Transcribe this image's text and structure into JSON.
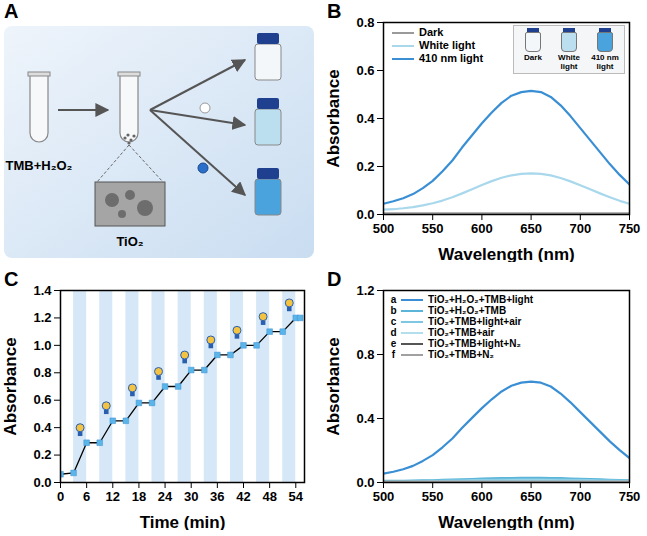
{
  "diagram": {
    "panel": "A",
    "reagent": "TMB+H₂O₂",
    "catalyst": "TiO₂"
  },
  "chart_data": [
    {
      "type": "line",
      "panel": "B",
      "x_label": "Wavelength (nm)",
      "y_label": "Absorbance",
      "x": [
        500,
        510,
        520,
        530,
        540,
        550,
        560,
        570,
        580,
        590,
        600,
        610,
        620,
        630,
        640,
        650,
        660,
        670,
        680,
        690,
        700,
        710,
        720,
        730,
        740,
        750
      ],
      "series": [
        {
          "name": "Dark",
          "color": "#9a9a9a",
          "values": [
            0.005,
            0.005,
            0.005,
            0.005,
            0.005,
            0.005,
            0.005,
            0.005,
            0.005,
            0.005,
            0.005,
            0.005,
            0.005,
            0.005,
            0.005,
            0.005,
            0.005,
            0.005,
            0.005,
            0.005,
            0.005,
            0.005,
            0.005,
            0.005,
            0.005,
            0.005
          ]
        },
        {
          "name": "White light",
          "color": "#a9d8ec",
          "values": [
            0.02,
            0.022,
            0.026,
            0.031,
            0.038,
            0.047,
            0.058,
            0.072,
            0.088,
            0.105,
            0.123,
            0.139,
            0.153,
            0.163,
            0.169,
            0.171,
            0.169,
            0.163,
            0.152,
            0.138,
            0.122,
            0.105,
            0.088,
            0.072,
            0.057,
            0.045
          ]
        },
        {
          "name": "410 nm light",
          "color": "#3a8fd4",
          "values": [
            0.045,
            0.055,
            0.068,
            0.085,
            0.11,
            0.14,
            0.18,
            0.225,
            0.28,
            0.33,
            0.38,
            0.425,
            0.465,
            0.495,
            0.51,
            0.515,
            0.51,
            0.49,
            0.455,
            0.41,
            0.36,
            0.31,
            0.26,
            0.21,
            0.165,
            0.125
          ]
        }
      ],
      "xlim": [
        500,
        750
      ],
      "xticks": [
        500,
        550,
        600,
        650,
        700,
        750
      ],
      "ylim": [
        0,
        0.8
      ],
      "yticks": [
        {
          "value": 0,
          "label": "0.0"
        },
        {
          "value": 0.2,
          "label": "0.2"
        },
        {
          "value": 0.4,
          "label": "0.4"
        },
        {
          "value": 0.6,
          "label": "0.6"
        },
        {
          "value": 0.8,
          "label": "0.8"
        }
      ],
      "legend": "top-left",
      "inset_labels": [
        "Dark",
        "White light",
        "410 nm light"
      ]
    },
    {
      "type": "line",
      "panel": "C",
      "x_label": "Time (min)",
      "y_label": "Absorbance",
      "x": [
        0,
        3,
        6,
        9,
        12,
        15,
        18,
        21,
        24,
        27,
        30,
        33,
        36,
        39,
        42,
        45,
        48,
        51,
        54,
        55
      ],
      "series": [
        {
          "color": "#000000",
          "marker": "square",
          "values": [
            0.06,
            0.07,
            0.29,
            0.29,
            0.45,
            0.45,
            0.58,
            0.58,
            0.7,
            0.7,
            0.82,
            0.82,
            0.93,
            0.93,
            1.0,
            1.0,
            1.1,
            1.1,
            1.2,
            1.2
          ]
        }
      ],
      "light_on": [
        [
          3,
          6
        ],
        [
          9,
          12
        ],
        [
          15,
          18
        ],
        [
          21,
          24
        ],
        [
          27,
          30
        ],
        [
          33,
          36
        ],
        [
          39,
          42
        ],
        [
          45,
          48
        ],
        [
          51,
          54
        ]
      ],
      "xlim": [
        0,
        56
      ],
      "xticks": [
        0,
        6,
        12,
        18,
        24,
        30,
        36,
        42,
        48,
        54
      ],
      "ylim": [
        0,
        1.4
      ],
      "yticks": [
        {
          "value": 0,
          "label": "0.0"
        },
        {
          "value": 0.2,
          "label": "0.2"
        },
        {
          "value": 0.4,
          "label": "0.4"
        },
        {
          "value": 0.6,
          "label": "0.6"
        },
        {
          "value": 0.8,
          "label": "0.8"
        },
        {
          "value": 1,
          "label": "1.0"
        },
        {
          "value": 1.2,
          "label": "1.2"
        },
        {
          "value": 1.4,
          "label": "1.4"
        }
      ]
    },
    {
      "type": "line",
      "panel": "D",
      "x_label": "Wavelength (nm)",
      "y_label": "Absorbance",
      "x": [
        500,
        510,
        520,
        530,
        540,
        550,
        560,
        570,
        580,
        590,
        600,
        610,
        620,
        630,
        640,
        650,
        660,
        670,
        680,
        690,
        700,
        710,
        720,
        730,
        740,
        750
      ],
      "series": [
        {
          "tag": "a",
          "name": "TiO₂+H₂O₂+TMB+light",
          "color": "#3a8fd4",
          "values": [
            0.055,
            0.067,
            0.083,
            0.104,
            0.135,
            0.171,
            0.22,
            0.275,
            0.342,
            0.404,
            0.465,
            0.52,
            0.569,
            0.605,
            0.624,
            0.63,
            0.624,
            0.6,
            0.556,
            0.501,
            0.44,
            0.379,
            0.318,
            0.257,
            0.202,
            0.153
          ]
        },
        {
          "tag": "b",
          "name": "TiO₂+H₂O₂+TMB",
          "color": "#5bb5d8",
          "values": [
            0.01,
            0.01,
            0.011,
            0.012,
            0.013,
            0.014,
            0.016,
            0.018,
            0.02,
            0.022,
            0.024,
            0.026,
            0.027,
            0.028,
            0.029,
            0.029,
            0.029,
            0.028,
            0.027,
            0.025,
            0.023,
            0.021,
            0.019,
            0.017,
            0.015,
            0.014
          ]
        },
        {
          "tag": "c",
          "name": "TiO₂+TMB+light+air",
          "color": "#7ec8e3",
          "values": [
            0.008,
            0.008,
            0.009,
            0.009,
            0.01,
            0.011,
            0.012,
            0.013,
            0.014,
            0.015,
            0.016,
            0.017,
            0.018,
            0.018,
            0.019,
            0.019,
            0.019,
            0.018,
            0.018,
            0.017,
            0.016,
            0.015,
            0.014,
            0.013,
            0.012,
            0.011
          ]
        },
        {
          "tag": "d",
          "name": "TiO₂+TMB+air",
          "color": "#b3deee",
          "values": [
            0.006,
            0.006,
            0.006,
            0.007,
            0.007,
            0.008,
            0.008,
            0.009,
            0.009,
            0.01,
            0.01,
            0.011,
            0.011,
            0.012,
            0.012,
            0.012,
            0.012,
            0.012,
            0.011,
            0.011,
            0.01,
            0.01,
            0.009,
            0.009,
            0.008,
            0.008
          ]
        },
        {
          "tag": "e",
          "name": "TiO₂+TMB+light+N₂",
          "color": "#555555",
          "values": [
            0.004,
            0.004,
            0.004,
            0.004,
            0.004,
            0.004,
            0.004,
            0.004,
            0.004,
            0.004,
            0.004,
            0.004,
            0.004,
            0.004,
            0.004,
            0.004,
            0.004,
            0.004,
            0.004,
            0.004,
            0.004,
            0.004,
            0.004,
            0.004,
            0.004,
            0.004
          ]
        },
        {
          "tag": "f",
          "name": "TiO₂+TMB+N₂",
          "color": "#a0a0a0",
          "values": [
            0.002,
            0.002,
            0.002,
            0.002,
            0.002,
            0.002,
            0.002,
            0.002,
            0.002,
            0.002,
            0.002,
            0.002,
            0.002,
            0.002,
            0.002,
            0.002,
            0.002,
            0.002,
            0.002,
            0.002,
            0.002,
            0.002,
            0.002,
            0.002,
            0.002,
            0.002
          ]
        }
      ],
      "xlim": [
        500,
        750
      ],
      "xticks": [
        500,
        550,
        600,
        650,
        700,
        750
      ],
      "ylim": [
        0,
        1.2
      ],
      "yticks": [
        {
          "value": 0,
          "label": "0.0"
        },
        {
          "value": 0.4,
          "label": "0.4"
        },
        {
          "value": 0.8,
          "label": "0.8"
        },
        {
          "value": 1.2,
          "label": "1.2"
        }
      ],
      "legend": "top-left"
    }
  ]
}
